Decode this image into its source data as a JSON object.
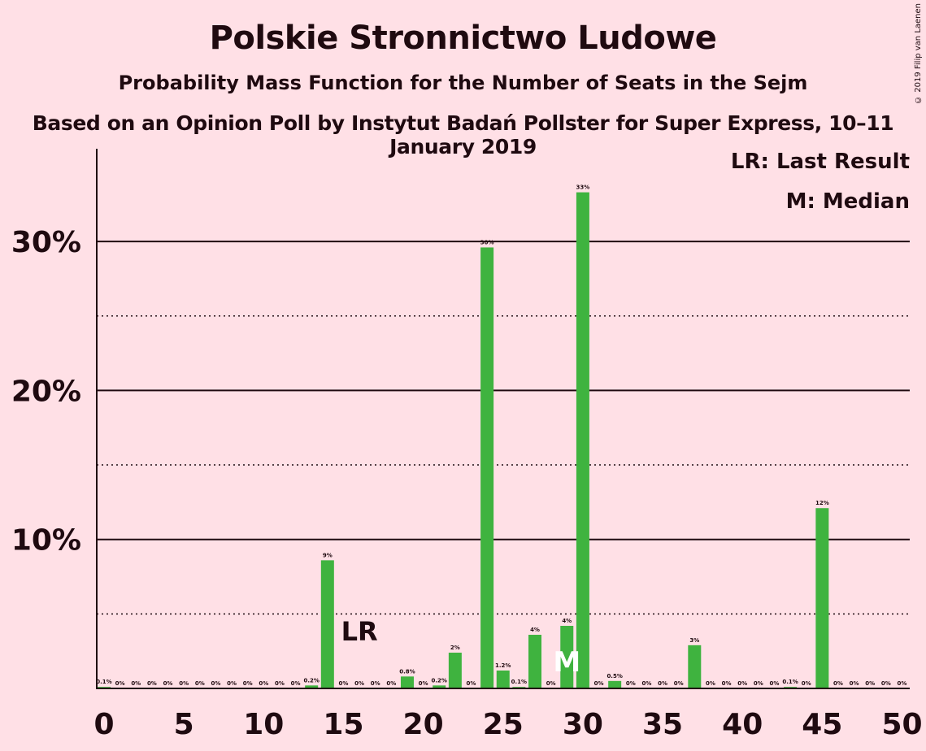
{
  "title": "Polskie Stronnictwo Ludowe",
  "subtitle": "Probability Mass Function for the Number of Seats in the Sejm",
  "subtitle2": "Based on an Opinion Poll by Instytut Badań Pollster for Super Express, 10–11 January 2019",
  "copyright": "© 2019 Filip van Laenen",
  "legend": {
    "last_result": "LR: Last Result",
    "median": "M: Median"
  },
  "colors": {
    "background": "#FFE0E6",
    "bar": "#3FB33F",
    "text": "#1f0a10"
  },
  "chart_data": {
    "type": "bar",
    "xlabel": "",
    "ylabel": "",
    "ylim": [
      0,
      36
    ],
    "x_ticks": [
      0,
      5,
      10,
      15,
      20,
      25,
      30,
      35,
      40,
      45,
      50
    ],
    "y_ticks": [
      {
        "value": 10,
        "label": "10%"
      },
      {
        "value": 20,
        "label": "20%"
      },
      {
        "value": 30,
        "label": "30%"
      }
    ],
    "dotted_gridlines": [
      5,
      15,
      25
    ],
    "solid_gridlines": [
      10,
      20,
      30
    ],
    "categories": [
      0,
      1,
      2,
      3,
      4,
      5,
      6,
      7,
      8,
      9,
      10,
      11,
      12,
      13,
      14,
      15,
      16,
      17,
      18,
      19,
      20,
      21,
      22,
      23,
      24,
      25,
      26,
      27,
      28,
      29,
      30,
      31,
      32,
      33,
      34,
      35,
      36,
      37,
      38,
      39,
      40,
      41,
      42,
      43,
      44,
      45,
      46,
      47,
      48,
      49,
      50
    ],
    "values": [
      0.1,
      0,
      0,
      0,
      0,
      0,
      0,
      0,
      0,
      0,
      0,
      0,
      0,
      0.2,
      8.6,
      0,
      0,
      0,
      0,
      0.8,
      0,
      0.2,
      2.4,
      0,
      29.6,
      1.2,
      0.1,
      3.6,
      0,
      4.2,
      33.3,
      0,
      0.5,
      0,
      0,
      0,
      0,
      2.9,
      0,
      0,
      0,
      0,
      0,
      0.1,
      0,
      12.1,
      0,
      0,
      0,
      0,
      0
    ],
    "labels": [
      "0.1%",
      "0%",
      "0%",
      "0%",
      "0%",
      "0%",
      "0%",
      "0%",
      "0%",
      "0%",
      "0%",
      "0%",
      "0%",
      "0.2%",
      "9%",
      "0%",
      "0%",
      "0%",
      "0%",
      "0.8%",
      "0%",
      "0.2%",
      "2%",
      "0%",
      "30%",
      "1.2%",
      "0.1%",
      "4%",
      "0%",
      "4%",
      "33%",
      "0%",
      "0.5%",
      "0%",
      "0%",
      "0%",
      "0%",
      "3%",
      "0%",
      "0%",
      "0%",
      "0%",
      "0%",
      "0.1%",
      "0%",
      "12%",
      "0%",
      "0%",
      "0%",
      "0%",
      "0%"
    ],
    "last_result": {
      "seat": 16,
      "label": "LR"
    },
    "median": {
      "seat": 29,
      "label": "M"
    }
  }
}
